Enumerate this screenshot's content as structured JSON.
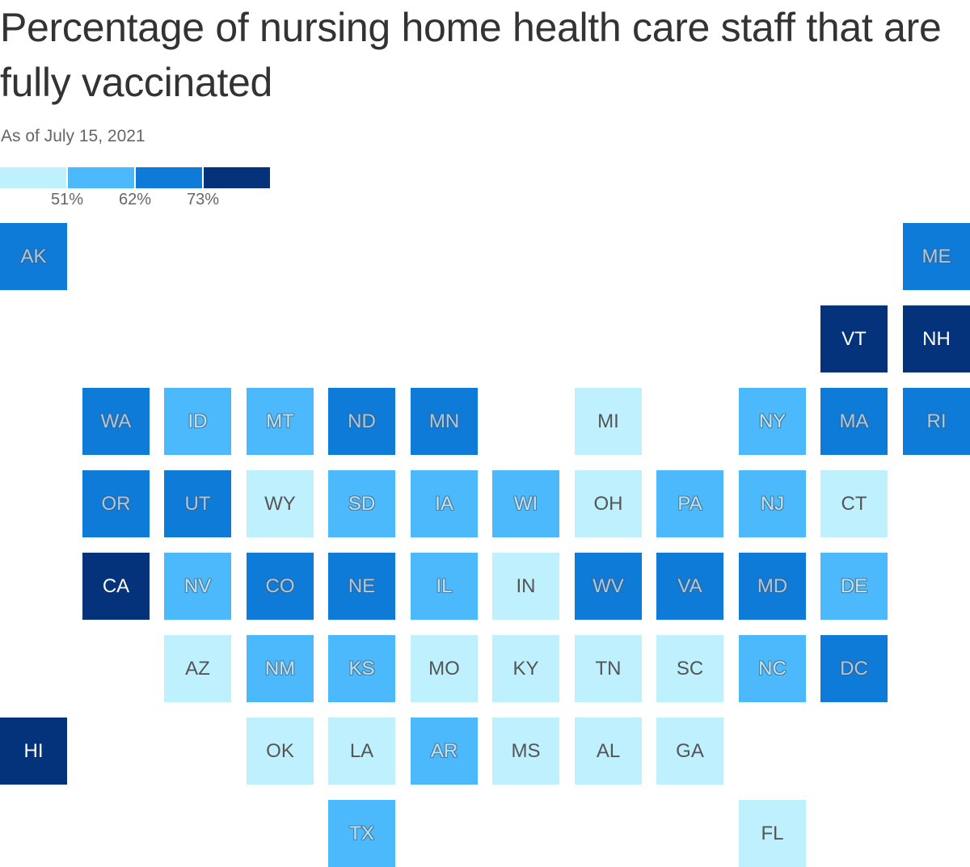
{
  "title": "Percentage of nursing home health care staff that are fully vaccinated",
  "subtitle": "As of July 15, 2021",
  "legend": {
    "bins": [
      {
        "color": "#bff0fd"
      },
      {
        "color": "#4cb9fc"
      },
      {
        "color": "#0f7bd8"
      },
      {
        "color": "#04327b"
      }
    ],
    "ticks": [
      "51%",
      "62%",
      "73%"
    ]
  },
  "colors": {
    "bin0": "#bff0fd",
    "bin1": "#4cb9fc",
    "bin2": "#0f7bd8",
    "bin3": "#04327b"
  },
  "states": [
    {
      "abbr": "AK",
      "col": 0,
      "row": 0,
      "bin": 2
    },
    {
      "abbr": "ME",
      "col": 11,
      "row": 0,
      "bin": 2
    },
    {
      "abbr": "VT",
      "col": 10,
      "row": 1,
      "bin": 3
    },
    {
      "abbr": "NH",
      "col": 11,
      "row": 1,
      "bin": 3
    },
    {
      "abbr": "WA",
      "col": 1,
      "row": 2,
      "bin": 2
    },
    {
      "abbr": "ID",
      "col": 2,
      "row": 2,
      "bin": 1
    },
    {
      "abbr": "MT",
      "col": 3,
      "row": 2,
      "bin": 1
    },
    {
      "abbr": "ND",
      "col": 4,
      "row": 2,
      "bin": 2
    },
    {
      "abbr": "MN",
      "col": 5,
      "row": 2,
      "bin": 2
    },
    {
      "abbr": "MI",
      "col": 7,
      "row": 2,
      "bin": 0
    },
    {
      "abbr": "NY",
      "col": 9,
      "row": 2,
      "bin": 1
    },
    {
      "abbr": "MA",
      "col": 10,
      "row": 2,
      "bin": 2
    },
    {
      "abbr": "RI",
      "col": 11,
      "row": 2,
      "bin": 2
    },
    {
      "abbr": "OR",
      "col": 1,
      "row": 3,
      "bin": 2
    },
    {
      "abbr": "UT",
      "col": 2,
      "row": 3,
      "bin": 2
    },
    {
      "abbr": "WY",
      "col": 3,
      "row": 3,
      "bin": 0
    },
    {
      "abbr": "SD",
      "col": 4,
      "row": 3,
      "bin": 1
    },
    {
      "abbr": "IA",
      "col": 5,
      "row": 3,
      "bin": 1
    },
    {
      "abbr": "WI",
      "col": 6,
      "row": 3,
      "bin": 1
    },
    {
      "abbr": "OH",
      "col": 7,
      "row": 3,
      "bin": 0
    },
    {
      "abbr": "PA",
      "col": 8,
      "row": 3,
      "bin": 1
    },
    {
      "abbr": "NJ",
      "col": 9,
      "row": 3,
      "bin": 1
    },
    {
      "abbr": "CT",
      "col": 10,
      "row": 3,
      "bin": 0
    },
    {
      "abbr": "CA",
      "col": 1,
      "row": 4,
      "bin": 3
    },
    {
      "abbr": "NV",
      "col": 2,
      "row": 4,
      "bin": 1
    },
    {
      "abbr": "CO",
      "col": 3,
      "row": 4,
      "bin": 2
    },
    {
      "abbr": "NE",
      "col": 4,
      "row": 4,
      "bin": 2
    },
    {
      "abbr": "IL",
      "col": 5,
      "row": 4,
      "bin": 1
    },
    {
      "abbr": "IN",
      "col": 6,
      "row": 4,
      "bin": 0
    },
    {
      "abbr": "WV",
      "col": 7,
      "row": 4,
      "bin": 2
    },
    {
      "abbr": "VA",
      "col": 8,
      "row": 4,
      "bin": 2
    },
    {
      "abbr": "MD",
      "col": 9,
      "row": 4,
      "bin": 2
    },
    {
      "abbr": "DE",
      "col": 10,
      "row": 4,
      "bin": 1
    },
    {
      "abbr": "AZ",
      "col": 2,
      "row": 5,
      "bin": 0
    },
    {
      "abbr": "NM",
      "col": 3,
      "row": 5,
      "bin": 1
    },
    {
      "abbr": "KS",
      "col": 4,
      "row": 5,
      "bin": 1
    },
    {
      "abbr": "MO",
      "col": 5,
      "row": 5,
      "bin": 0
    },
    {
      "abbr": "KY",
      "col": 6,
      "row": 5,
      "bin": 0
    },
    {
      "abbr": "TN",
      "col": 7,
      "row": 5,
      "bin": 0
    },
    {
      "abbr": "SC",
      "col": 8,
      "row": 5,
      "bin": 0
    },
    {
      "abbr": "NC",
      "col": 9,
      "row": 5,
      "bin": 1
    },
    {
      "abbr": "DC",
      "col": 10,
      "row": 5,
      "bin": 2
    },
    {
      "abbr": "HI",
      "col": 0,
      "row": 6,
      "bin": 3
    },
    {
      "abbr": "OK",
      "col": 3,
      "row": 6,
      "bin": 0
    },
    {
      "abbr": "LA",
      "col": 4,
      "row": 6,
      "bin": 0
    },
    {
      "abbr": "AR",
      "col": 5,
      "row": 6,
      "bin": 1
    },
    {
      "abbr": "MS",
      "col": 6,
      "row": 6,
      "bin": 0
    },
    {
      "abbr": "AL",
      "col": 7,
      "row": 6,
      "bin": 0
    },
    {
      "abbr": "GA",
      "col": 8,
      "row": 6,
      "bin": 0
    },
    {
      "abbr": "TX",
      "col": 4,
      "row": 7,
      "bin": 1
    },
    {
      "abbr": "FL",
      "col": 9,
      "row": 7,
      "bin": 0
    }
  ]
}
